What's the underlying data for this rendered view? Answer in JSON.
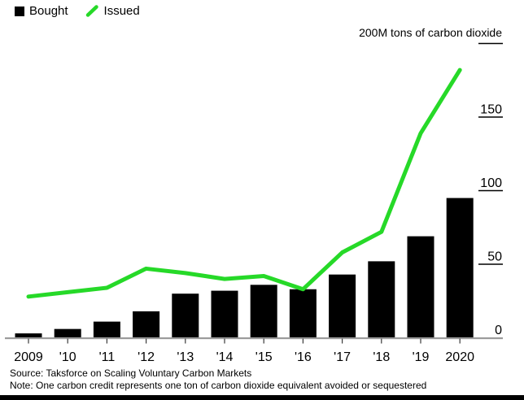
{
  "chart_data": {
    "type": "combo-bar-line",
    "title": "200M tons of carbon dioxide",
    "categories": [
      "2009",
      "'10",
      "'11",
      "'12",
      "'13",
      "'14",
      "'15",
      "'16",
      "'17",
      "'18",
      "'19",
      "2020"
    ],
    "series": [
      {
        "name": "Bought",
        "type": "bar",
        "color": "#000000",
        "values": [
          3,
          6,
          11,
          18,
          30,
          32,
          36,
          33,
          43,
          52,
          69,
          95
        ]
      },
      {
        "name": "Issued",
        "type": "line",
        "color": "#26d928",
        "values": [
          28,
          31,
          34,
          47,
          44,
          40,
          42,
          33,
          58,
          72,
          139,
          182
        ]
      }
    ],
    "ylim": [
      0,
      200
    ],
    "yticks": [
      0,
      50,
      100,
      150,
      200
    ],
    "ytick_labels": [
      "0",
      "50",
      "100",
      "150",
      ""
    ],
    "legend_position": "top-left",
    "grid": "none",
    "axis_color": "#9c9c9c",
    "tick_color": "#000000"
  },
  "footer": {
    "source": "Source: Taksforce on Scaling Voluntary Carbon Markets",
    "note": "Note: One carbon credit represents one ton of carbon dioxide equivalent avoided or sequestered"
  }
}
